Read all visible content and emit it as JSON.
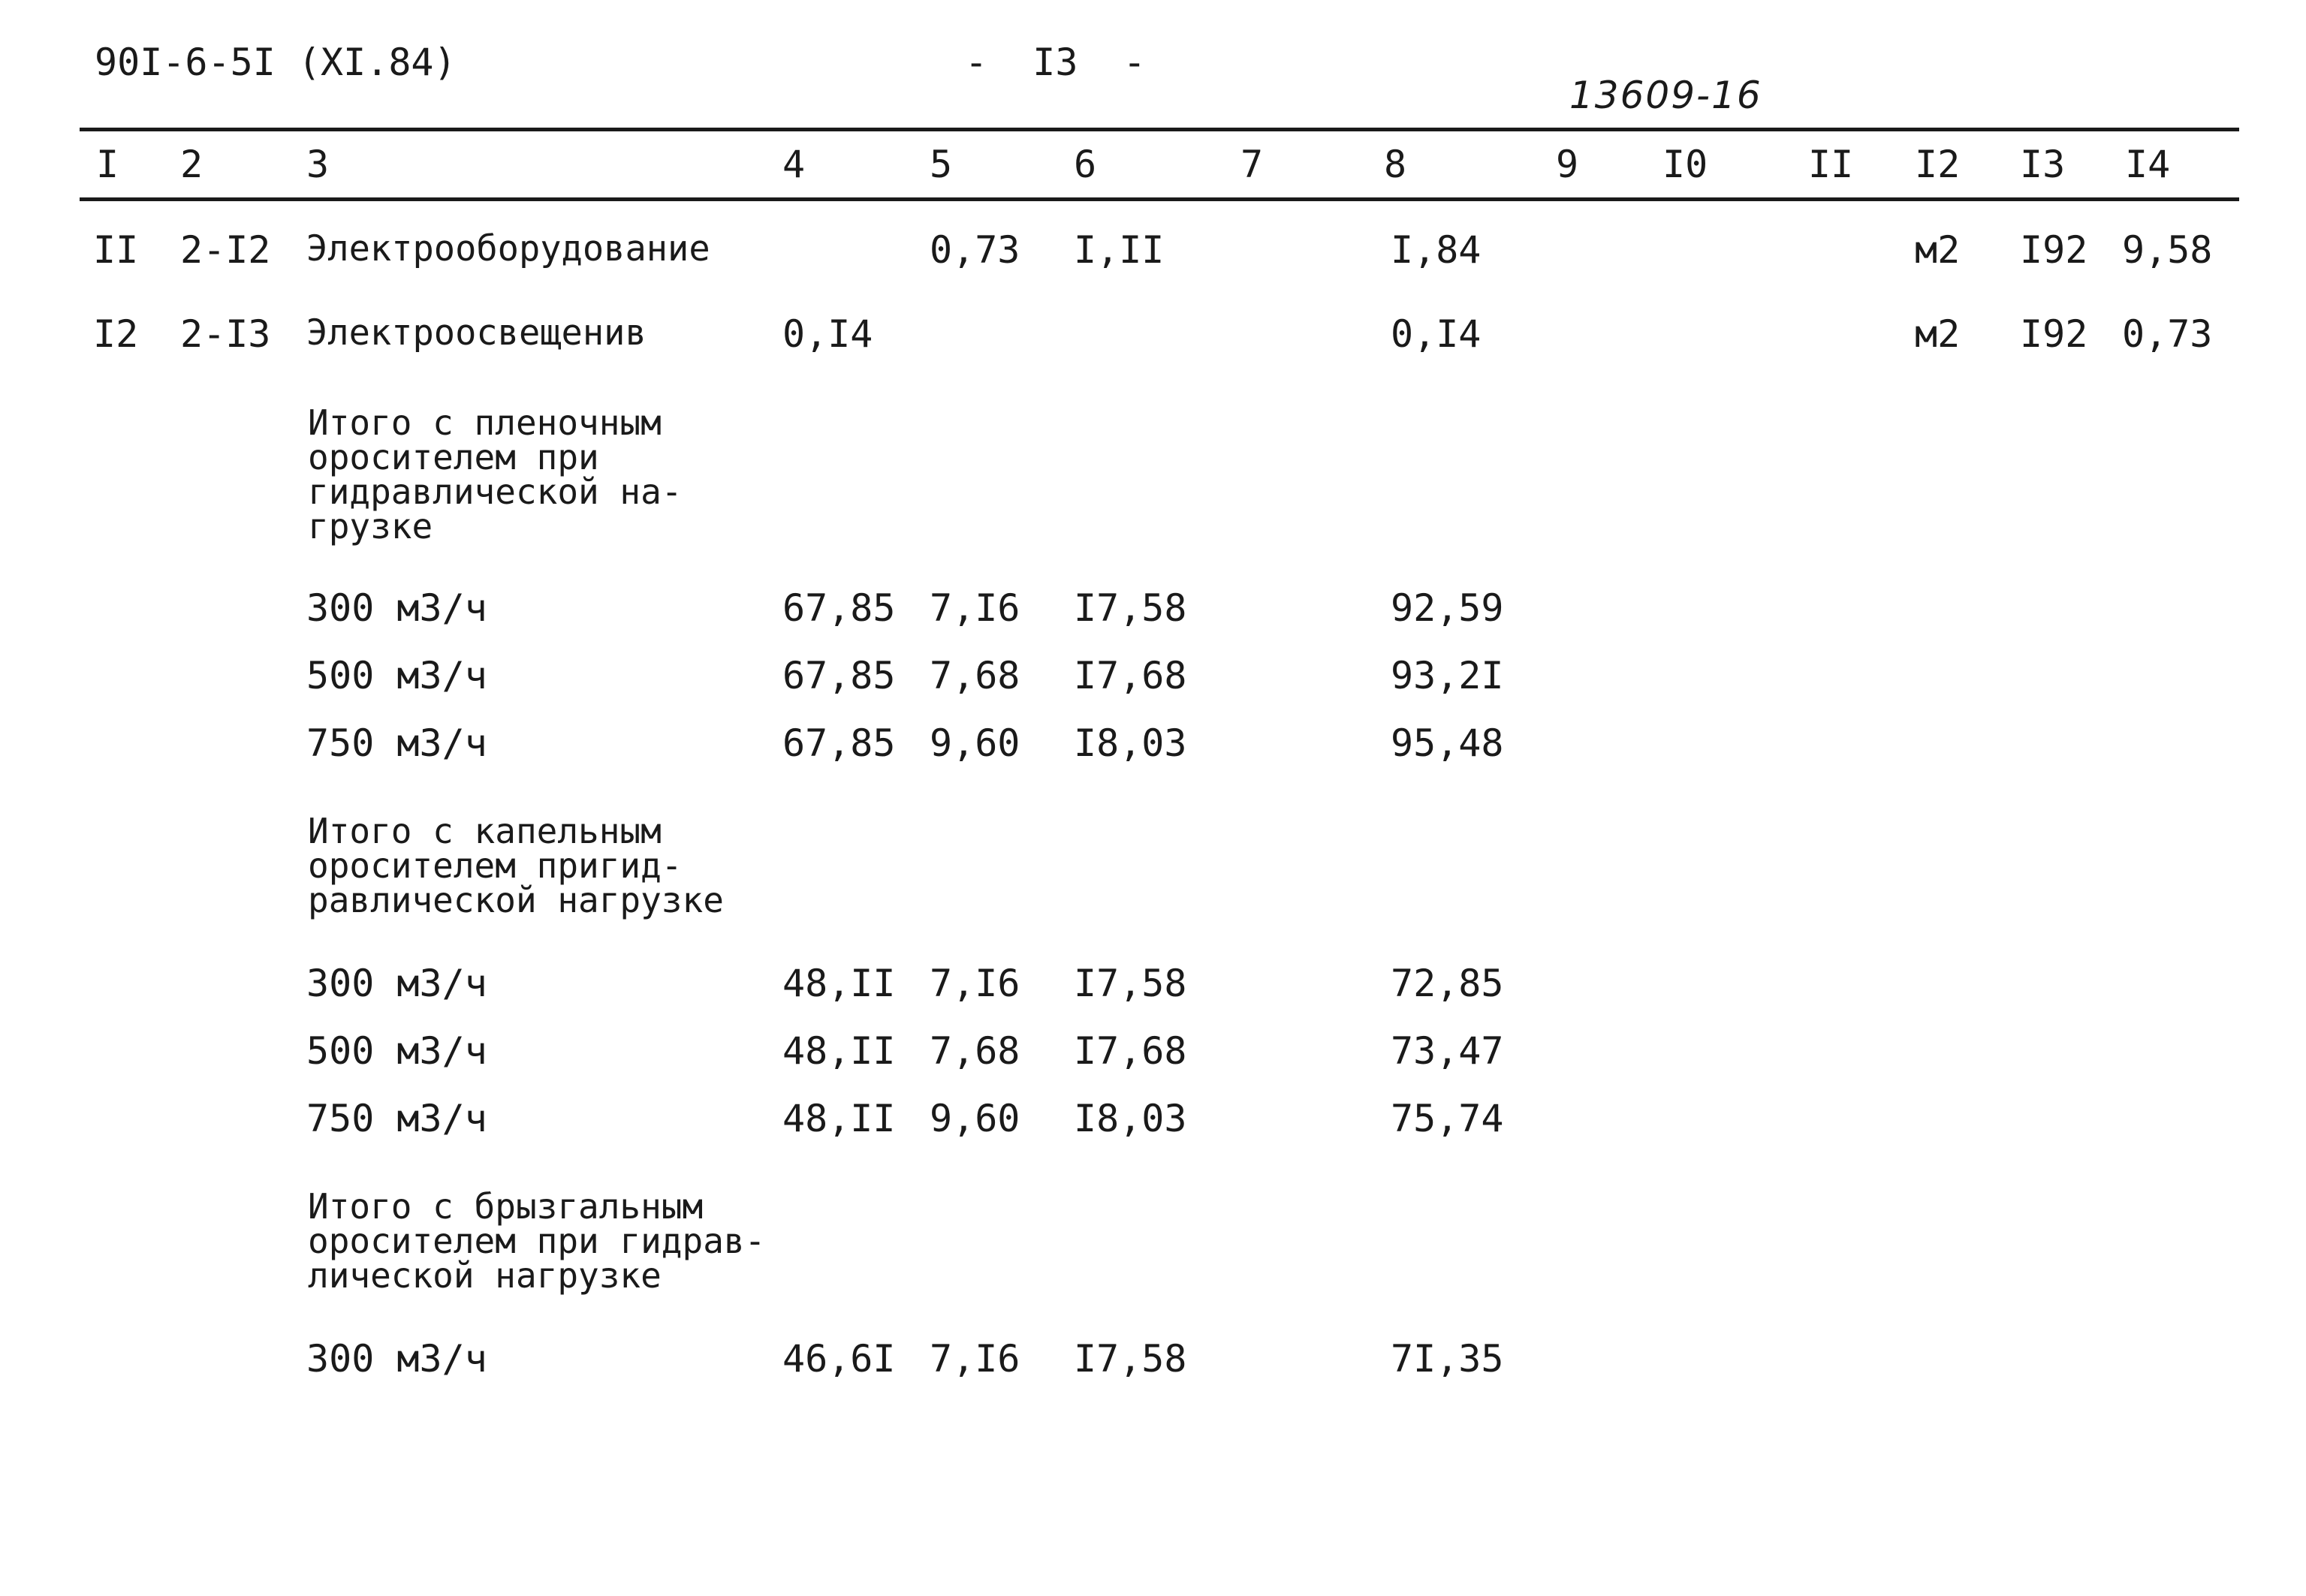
{
  "header": {
    "doc_code": "90I-6-5I (XI.84)",
    "page_number": "-  I3  -",
    "handwritten_number": "13609-16"
  },
  "table": {
    "columns": [
      "I",
      "2",
      "3",
      "4",
      "5",
      "6",
      "7",
      "8",
      "9",
      "I0",
      "II",
      "I2",
      "I3",
      "I4"
    ],
    "rows": [
      {
        "n": "II",
        "code": "2-I2",
        "name": "Электрооборудование",
        "c4": "",
        "c5": "0,73",
        "c6": "I,II",
        "c8": "I,84",
        "unit": "м2",
        "c13": "I92",
        "c14": "9,58"
      },
      {
        "n": "I2",
        "code": "2-I3",
        "name": "Электроосвещенив",
        "c4": "0,I4",
        "c5": "",
        "c6": "",
        "c8": "0,I4",
        "unit": "м2",
        "c13": "I92",
        "c14": "0,73"
      }
    ],
    "groups": [
      {
        "title": "Итого с пленочным\nоросителем при\nгидравлической на-\nгрузке",
        "rows": [
          {
            "load": "300 м3/ч",
            "c4": "67,85",
            "c5": "7,I6",
            "c6": "I7,58",
            "c8": "92,59"
          },
          {
            "load": "500 м3/ч",
            "c4": "67,85",
            "c5": "7,68",
            "c6": "I7,68",
            "c8": "93,2I"
          },
          {
            "load": "750 м3/ч",
            "c4": "67,85",
            "c5": "9,60",
            "c6": "I8,03",
            "c8": "95,48"
          }
        ]
      },
      {
        "title": "Итого с капельным\nоросителем пригид-\nравлической нагрузке",
        "rows": [
          {
            "load": "300 м3/ч",
            "c4": "48,II",
            "c5": "7,I6",
            "c6": "I7,58",
            "c8": "72,85"
          },
          {
            "load": "500 м3/ч",
            "c4": "48,II",
            "c5": "7,68",
            "c6": "I7,68",
            "c8": "73,47"
          },
          {
            "load": "750 м3/ч",
            "c4": "48,II",
            "c5": "9,60",
            "c6": "I8,03",
            "c8": "75,74"
          }
        ]
      },
      {
        "title": "Итого с брызгальным\nоросителем при гидрав-\nлической нагрузке",
        "rows": [
          {
            "load": "300 м3/ч",
            "c4": "46,6I",
            "c5": "7,I6",
            "c6": "I7,58",
            "c8": "7I,35"
          }
        ]
      }
    ]
  }
}
